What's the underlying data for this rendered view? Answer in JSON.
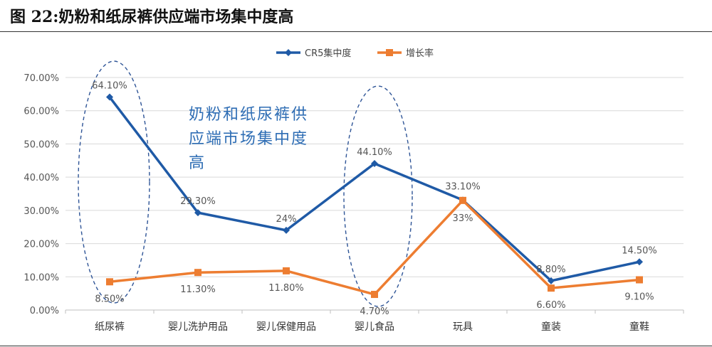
{
  "figure": {
    "title": "图 22:奶粉和纸尿裤供应端市场集中度高"
  },
  "chart_data": {
    "type": "line",
    "categories": [
      "纸尿裤",
      "婴儿洗护用品",
      "婴儿保健用品",
      "婴儿食品",
      "玩具",
      "童装",
      "童鞋"
    ],
    "ylim": [
      0,
      70
    ],
    "yticks": [
      "0.00%",
      "10.00%",
      "20.00%",
      "30.00%",
      "40.00%",
      "50.00%",
      "60.00%",
      "70.00%"
    ],
    "grid": true,
    "legend_position": "top-center",
    "series": [
      {
        "name": "CR5集中度",
        "color": "#1f5aa6",
        "marker": "diamond",
        "values": [
          64.1,
          29.3,
          24.0,
          44.1,
          33.1,
          8.8,
          14.5
        ],
        "labels": [
          "64.10%",
          "29.30%",
          "24%",
          "44.10%",
          "33.10%",
          "8.80%",
          "14.50%"
        ]
      },
      {
        "name": "增长率",
        "color": "#ed7d31",
        "marker": "square",
        "values": [
          8.5,
          11.3,
          11.8,
          4.7,
          33.0,
          6.6,
          9.1
        ],
        "labels": [
          "8.50%",
          "11.30%",
          "11.80%",
          "4.70%",
          "33%",
          "6.60%",
          "9.10%"
        ]
      }
    ],
    "annotation": {
      "lines": [
        "奶粉和纸尿裤供",
        "应端市场集中度",
        "高"
      ],
      "color": "#2e6db4"
    }
  }
}
